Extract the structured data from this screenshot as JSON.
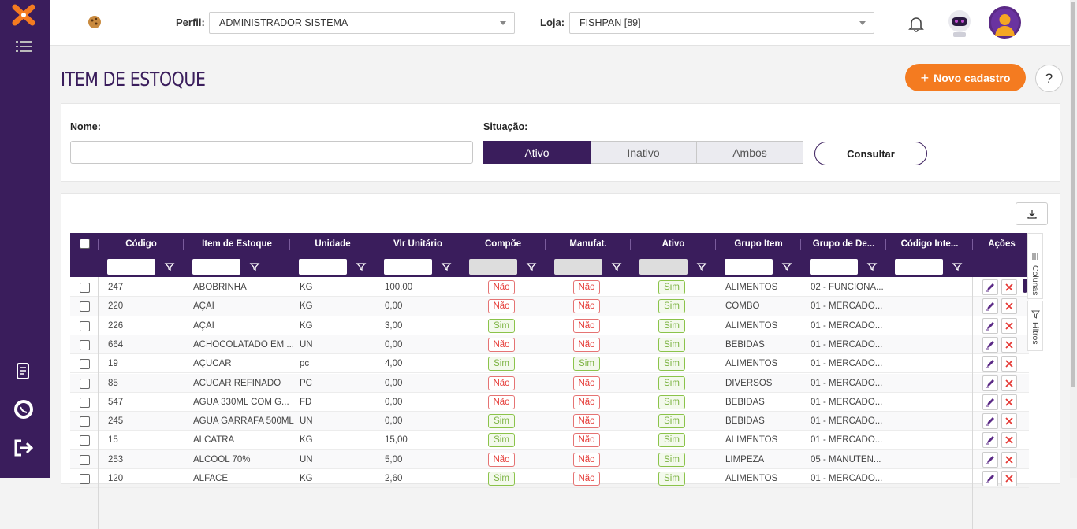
{
  "header": {
    "profile_label": "Perfil:",
    "profile_value": "ADMINISTRADOR SISTEMA",
    "store_label": "Loja:",
    "store_value": "FISHPAN [89]"
  },
  "page": {
    "title": "ITEM DE ESTOQUE",
    "new_button": "Novo cadastro",
    "help_button": "?"
  },
  "filters": {
    "name_label": "Nome:",
    "name_value": "",
    "status_label": "Situação:",
    "status_options": [
      "Ativo",
      "Inativo",
      "Ambos"
    ],
    "status_selected": "Ativo",
    "search_button": "Consultar"
  },
  "grid": {
    "columns": [
      "Código",
      "Item de Estoque",
      "Unidade",
      "Vlr Unitário",
      "Compõe",
      "Manufat.",
      "Ativo",
      "Grupo Item",
      "Grupo de De...",
      "Código Inte...",
      "Ações"
    ],
    "side_tabs": [
      "Colunas",
      "Filtros"
    ],
    "rows": [
      [
        "247",
        "ABOBRINHA",
        "KG",
        "100,00",
        "Não",
        "Não",
        "Sim",
        "ALIMENTOS",
        "02 - FUNCIONA...",
        ""
      ],
      [
        "220",
        "AÇAI",
        "KG",
        "0,00",
        "Não",
        "Não",
        "Sim",
        "COMBO",
        "01 - MERCADO...",
        ""
      ],
      [
        "226",
        "AÇAI",
        "KG",
        "3,00",
        "Sim",
        "Não",
        "Sim",
        "ALIMENTOS",
        "01 - MERCADO...",
        ""
      ],
      [
        "664",
        "ACHOCOLATADO EM ...",
        "UN",
        "0,00",
        "Não",
        "Não",
        "Sim",
        "BEBIDAS",
        "01 - MERCADO...",
        ""
      ],
      [
        "19",
        "AÇUCAR",
        "pc",
        "4,00",
        "Sim",
        "Sim",
        "Sim",
        "ALIMENTOS",
        "01 - MERCADO...",
        ""
      ],
      [
        "85",
        "ACUCAR REFINADO",
        "PC",
        "0,00",
        "Não",
        "Não",
        "Sim",
        "DIVERSOS",
        "01 - MERCADO...",
        ""
      ],
      [
        "547",
        "AGUA 330ML COM G...",
        "FD",
        "0,00",
        "Não",
        "Não",
        "Sim",
        "BEBIDAS",
        "01 - MERCADO...",
        ""
      ],
      [
        "245",
        "AGUA GARRAFA 500ML",
        "UN",
        "0,00",
        "Sim",
        "Não",
        "Sim",
        "BEBIDAS",
        "01 - MERCADO...",
        ""
      ],
      [
        "15",
        "ALCATRA",
        "KG",
        "15,00",
        "Sim",
        "Não",
        "Sim",
        "ALIMENTOS",
        "01 - MERCADO...",
        ""
      ],
      [
        "253",
        "ALCOOL 70%",
        "UN",
        "5,00",
        "Não",
        "Não",
        "Sim",
        "LIMPEZA",
        "05 - MANUTEN...",
        ""
      ],
      [
        "120",
        "ALFACE",
        "KG",
        "2,60",
        "Sim",
        "Não",
        "Sim",
        "ALIMENTOS",
        "01 - MERCADO...",
        ""
      ]
    ]
  },
  "colors": {
    "brand_purple": "#3a1d5c",
    "accent_orange": "#f47b20",
    "no_red": "#e53935",
    "yes_green": "#7cb342"
  },
  "icons": [
    "app-logo-icon",
    "menu-list-icon",
    "cookie-icon",
    "bell-icon",
    "robot-avatar",
    "user-avatar-icon",
    "report-icon",
    "whatsapp-icon",
    "logout-icon",
    "plus-icon",
    "download-icon",
    "filter-icon",
    "edit-icon",
    "delete-icon"
  ]
}
